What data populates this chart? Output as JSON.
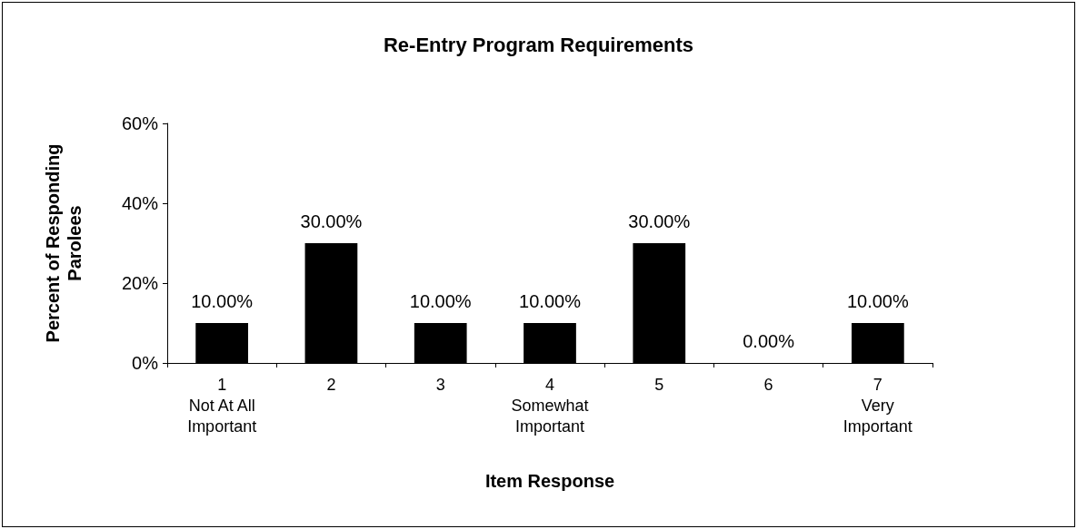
{
  "chart_data": {
    "type": "bar",
    "title": "Re-Entry Program Requirements",
    "xlabel": "Item Response",
    "ylabel": "Percent of Responding Parolees",
    "categories": [
      "1\nNot At All\nImportant",
      "2",
      "3",
      "4\nSomewhat\nImportant",
      "5",
      "6",
      "7\nVery\nImportant"
    ],
    "values": [
      10,
      30,
      10,
      10,
      30,
      0,
      10
    ],
    "value_labels": [
      "10.00%",
      "30.00%",
      "10.00%",
      "10.00%",
      "30.00%",
      "0.00%",
      "10.00%"
    ],
    "color": "#000000",
    "ylim": [
      0,
      60
    ],
    "yticks": [
      {
        "value": 0,
        "label": "0%"
      },
      {
        "value": 20,
        "label": "20%"
      },
      {
        "value": 40,
        "label": "40%"
      },
      {
        "value": 60,
        "label": "60%"
      }
    ],
    "grid": false
  }
}
